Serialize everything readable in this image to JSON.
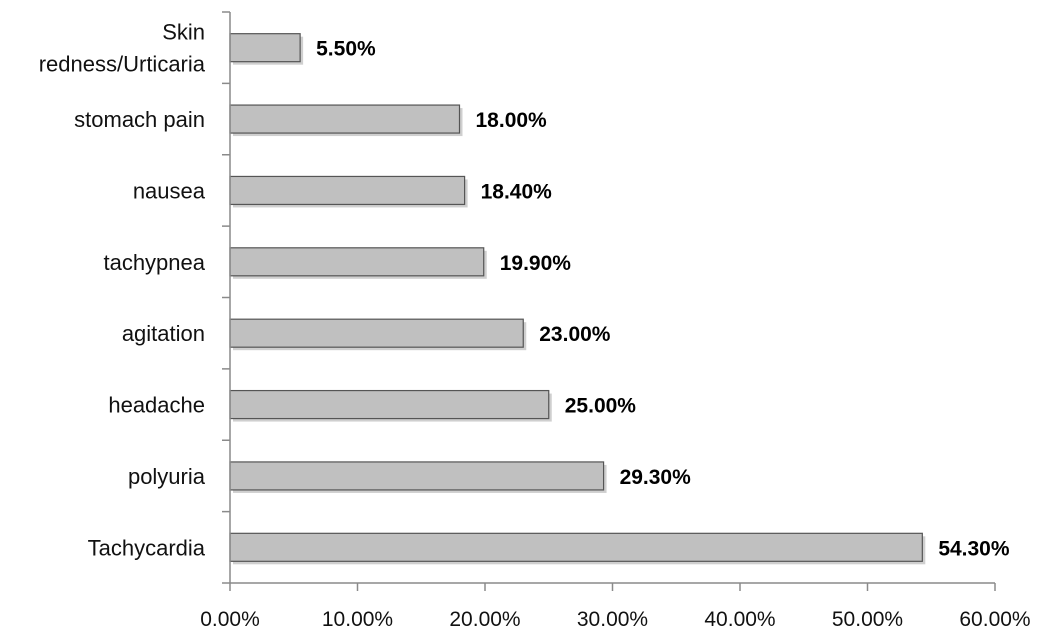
{
  "chart_data": {
    "type": "bar",
    "orientation": "horizontal",
    "title": "",
    "xlabel": "",
    "ylabel": "",
    "categories": [
      [
        "Skin",
        "redness/Urticaria"
      ],
      [
        "stomach pain"
      ],
      [
        "nausea"
      ],
      [
        "tachypnea"
      ],
      [
        "agitation"
      ],
      [
        "headache"
      ],
      [
        "polyuria"
      ],
      [
        "Tachycardia"
      ]
    ],
    "values": [
      5.5,
      18.0,
      18.4,
      19.9,
      23.0,
      25.0,
      29.3,
      54.3
    ],
    "data_labels": [
      "5.50%",
      "18.00%",
      "18.40%",
      "19.90%",
      "23.00%",
      "25.00%",
      "29.30%",
      "54.30%"
    ],
    "xlim": [
      0,
      60
    ],
    "xticks": [
      0,
      10,
      20,
      30,
      40,
      50,
      60
    ],
    "xtick_labels": [
      "0.00%",
      "10.00%",
      "20.00%",
      "30.00%",
      "40.00%",
      "50.00%",
      "60.00%"
    ],
    "grid": false,
    "legend": "none",
    "colors": {
      "bar_fill": "#c0c0c0",
      "bar_stroke": "#555555",
      "axis": "#8a8a8a",
      "text": "#111111",
      "shadow": "#a8a8a8"
    }
  }
}
